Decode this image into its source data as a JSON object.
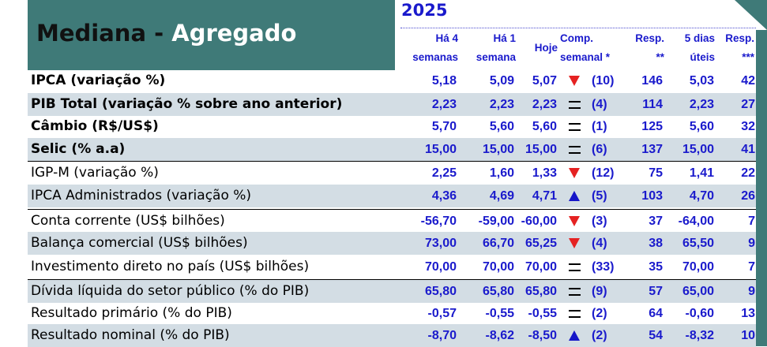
{
  "title": {
    "dark": "Mediana - ",
    "light": "Agregado"
  },
  "year": "2025",
  "headers": {
    "ha4": [
      "Há 4",
      "semanas"
    ],
    "ha1": [
      "Há 1",
      "semana"
    ],
    "hoje": "Hoje",
    "comp": [
      "Comp.",
      "semanal *"
    ],
    "resp1": [
      "Resp.",
      "**"
    ],
    "cinco": [
      "5 dias",
      "úteis"
    ],
    "resp2": [
      "Resp.",
      "***"
    ]
  },
  "rows": [
    {
      "label": "IPCA (variação %)",
      "bold": true,
      "ha4": "5,18",
      "ha1": "5,09",
      "hoje": "5,07",
      "trend": "down",
      "comp": "(10)",
      "resp": "146",
      "cinco": "5,03",
      "resp2": "42"
    },
    {
      "label": "PIB Total (variação % sobre ano anterior)",
      "bold": true,
      "ha4": "2,23",
      "ha1": "2,23",
      "hoje": "2,23",
      "trend": "equal",
      "comp": "(4)",
      "resp": "114",
      "cinco": "2,23",
      "resp2": "27"
    },
    {
      "label": "Câmbio (R$/US$)",
      "bold": true,
      "ha4": "5,70",
      "ha1": "5,60",
      "hoje": "5,60",
      "trend": "equal",
      "comp": "(1)",
      "resp": "125",
      "cinco": "5,60",
      "resp2": "32"
    },
    {
      "label": "Selic (% a.a)",
      "bold": true,
      "ha4": "15,00",
      "ha1": "15,00",
      "hoje": "15,00",
      "trend": "equal",
      "comp": "(6)",
      "resp": "137",
      "cinco": "15,00",
      "resp2": "41"
    },
    {
      "label": "IGP-M (variação %)",
      "bold": false,
      "ha4": "2,25",
      "ha1": "1,60",
      "hoje": "1,33",
      "trend": "down",
      "comp": "(12)",
      "resp": "75",
      "cinco": "1,41",
      "resp2": "22"
    },
    {
      "label": "IPCA Administrados (variação %)",
      "bold": false,
      "ha4": "4,36",
      "ha1": "4,69",
      "hoje": "4,71",
      "trend": "up",
      "comp": "(5)",
      "resp": "103",
      "cinco": "4,70",
      "resp2": "26"
    },
    {
      "label": "Conta corrente (US$ bilhões)",
      "bold": false,
      "ha4": "-56,70",
      "ha1": "-59,00",
      "hoje": "-60,00",
      "trend": "down",
      "comp": "(3)",
      "resp": "37",
      "cinco": "-64,00",
      "resp2": "7"
    },
    {
      "label": "Balança comercial (US$ bilhões)",
      "bold": false,
      "ha4": "73,00",
      "ha1": "66,70",
      "hoje": "65,25",
      "trend": "down",
      "comp": "(4)",
      "resp": "38",
      "cinco": "65,50",
      "resp2": "9"
    },
    {
      "label": "Investimento direto no país (US$ bilhões)",
      "bold": false,
      "ha4": "70,00",
      "ha1": "70,00",
      "hoje": "70,00",
      "trend": "equal",
      "comp": "(33)",
      "resp": "35",
      "cinco": "70,00",
      "resp2": "7"
    },
    {
      "label": "Dívida líquida do setor público (% do PIB)",
      "bold": false,
      "ha4": "65,80",
      "ha1": "65,80",
      "hoje": "65,80",
      "trend": "equal",
      "comp": "(9)",
      "resp": "57",
      "cinco": "65,00",
      "resp2": "9"
    },
    {
      "label": "Resultado primário (% do PIB)",
      "bold": false,
      "ha4": "-0,57",
      "ha1": "-0,55",
      "hoje": "-0,55",
      "trend": "equal",
      "comp": "(2)",
      "resp": "64",
      "cinco": "-0,60",
      "resp2": "13"
    },
    {
      "label": "Resultado nominal (% do PIB)",
      "bold": false,
      "ha4": "-8,70",
      "ha1": "-8,62",
      "hoje": "-8,50",
      "trend": "up",
      "comp": "(2)",
      "resp": "54",
      "cinco": "-8,32",
      "resp2": "10"
    }
  ]
}
